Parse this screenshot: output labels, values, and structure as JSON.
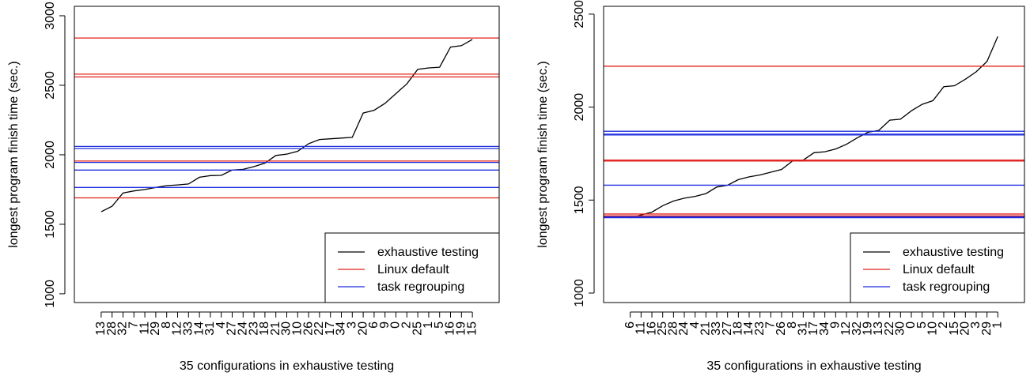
{
  "chart_data": [
    {
      "type": "line",
      "xlabel": "35 configurations in exhaustive testing",
      "ylabel": "longest program finish time (sec.)",
      "categories": [
        "13",
        "28",
        "32",
        "7",
        "11",
        "29",
        "8",
        "12",
        "33",
        "14",
        "31",
        "4",
        "27",
        "24",
        "23",
        "18",
        "21",
        "30",
        "10",
        "26",
        "22",
        "17",
        "34",
        "3",
        "20",
        "6",
        "9",
        "0",
        "2",
        "25",
        "1",
        "5",
        "16",
        "19",
        "15"
      ],
      "ylim": [
        937,
        3068
      ],
      "yticks": [
        1000,
        1500,
        2000,
        2500,
        3000
      ],
      "legend": "bottom-right",
      "series": [
        {
          "name": "exhaustive testing",
          "color": "#000000",
          "values": [
            1590,
            1630,
            1725,
            1740,
            1750,
            1765,
            1778,
            1783,
            1790,
            1838,
            1850,
            1852,
            1890,
            1895,
            1915,
            1940,
            1995,
            2005,
            2025,
            2080,
            2110,
            2115,
            2120,
            2125,
            2300,
            2320,
            2370,
            2440,
            2510,
            2615,
            2625,
            2630,
            2775,
            2785,
            2830
          ]
        },
        {
          "name": "Linux default",
          "color": "#e0201b",
          "hlines": [
            2840,
            2580,
            2560,
            1955,
            1690
          ]
        },
        {
          "name": "task regrouping",
          "color": "#1f2fe0",
          "hlines": [
            2060,
            2045,
            1945,
            1890,
            1765
          ]
        }
      ]
    },
    {
      "type": "line",
      "xlabel": "35 configurations in exhaustive testing",
      "ylabel": "longest program finish time (sec.)",
      "categories": [
        "6",
        "11",
        "16",
        "25",
        "28",
        "24",
        "4",
        "21",
        "33",
        "27",
        "18",
        "14",
        "23",
        "7",
        "26",
        "8",
        "31",
        "17",
        "34",
        "9",
        "12",
        "32",
        "19",
        "13",
        "22",
        "30",
        "0",
        "5",
        "10",
        "2",
        "15",
        "20",
        "3",
        "29",
        "1"
      ],
      "ylim": [
        949,
        2542
      ],
      "yticks": [
        1000,
        1500,
        2000,
        2500
      ],
      "legend": "bottom-right",
      "series": [
        {
          "name": "exhaustive testing",
          "color": "#000000",
          "values": [
            1405,
            1420,
            1435,
            1470,
            1495,
            1510,
            1520,
            1535,
            1570,
            1580,
            1610,
            1625,
            1635,
            1650,
            1665,
            1710,
            1715,
            1755,
            1760,
            1775,
            1800,
            1835,
            1865,
            1875,
            1930,
            1935,
            1980,
            2015,
            2035,
            2110,
            2115,
            2150,
            2190,
            2245,
            2380
          ]
        },
        {
          "name": "Linux default",
          "color": "#e0201b",
          "hlines": [
            2220,
            1715,
            1710,
            1425,
            1415
          ]
        },
        {
          "name": "task regrouping",
          "color": "#1f2fe0",
          "hlines": [
            1870,
            1855,
            1850,
            1580,
            1410,
            1405
          ]
        }
      ]
    }
  ]
}
